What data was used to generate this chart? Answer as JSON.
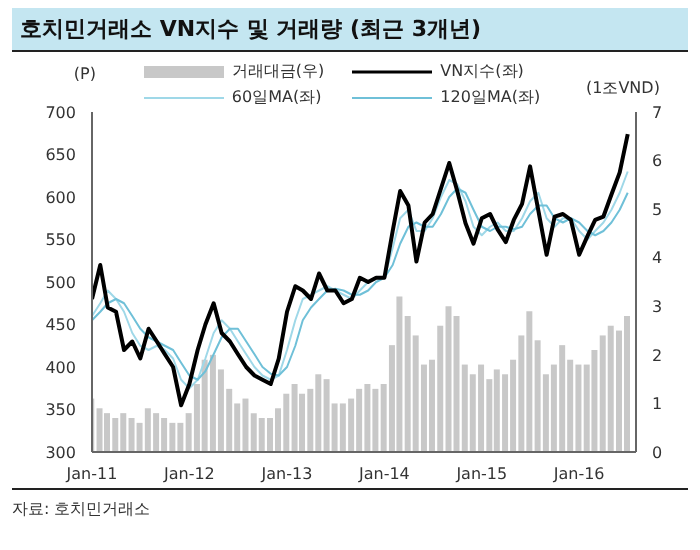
{
  "chart_data": {
    "type": "line",
    "title": "호치민거래소 VN지수 및 거래량 (최근 3개년)",
    "ylabel": "(P)",
    "y2label": "(1조VND)",
    "annotations": [
      "자료: 호치민거래소"
    ],
    "x": [
      "2011-01",
      "2011-02",
      "2011-03",
      "2011-04",
      "2011-05",
      "2011-06",
      "2011-07",
      "2011-08",
      "2011-09",
      "2011-10",
      "2011-11",
      "2011-12",
      "2012-01",
      "2012-02",
      "2012-03",
      "2012-04",
      "2012-05",
      "2012-06",
      "2012-07",
      "2012-08",
      "2012-09",
      "2012-10",
      "2012-11",
      "2012-12",
      "2013-01",
      "2013-02",
      "2013-03",
      "2013-04",
      "2013-05",
      "2013-06",
      "2013-07",
      "2013-08",
      "2013-09",
      "2013-10",
      "2013-11",
      "2013-12",
      "2014-01",
      "2014-02",
      "2014-03",
      "2014-04",
      "2014-05",
      "2014-06",
      "2014-07",
      "2014-08",
      "2014-09",
      "2014-10",
      "2014-11",
      "2014-12",
      "2015-01",
      "2015-02",
      "2015-03",
      "2015-04",
      "2015-05",
      "2015-06",
      "2015-07",
      "2015-08",
      "2015-09",
      "2015-10",
      "2015-11",
      "2015-12",
      "2016-01",
      "2016-02",
      "2016-03",
      "2016-04",
      "2016-05",
      "2016-06",
      "2016-07"
    ],
    "series": [
      {
        "name": "거래대금(우)",
        "type": "bar",
        "axis": "y2",
        "color": "#c8c8c8",
        "values": [
          1.1,
          0.9,
          0.8,
          0.7,
          0.8,
          0.7,
          0.6,
          0.9,
          0.8,
          0.7,
          0.6,
          0.6,
          0.8,
          1.4,
          1.9,
          2.0,
          1.7,
          1.3,
          1.0,
          1.1,
          0.8,
          0.7,
          0.7,
          0.9,
          1.2,
          1.4,
          1.2,
          1.3,
          1.6,
          1.5,
          1.0,
          1.0,
          1.1,
          1.3,
          1.4,
          1.3,
          1.4,
          2.2,
          3.2,
          2.8,
          2.4,
          1.8,
          1.9,
          2.6,
          3.0,
          2.8,
          1.8,
          1.6,
          1.8,
          1.5,
          1.7,
          1.6,
          1.9,
          2.4,
          2.9,
          2.3,
          1.6,
          1.8,
          2.2,
          1.9,
          1.8,
          1.8,
          2.1,
          2.4,
          2.6,
          2.5,
          2.8
        ]
      },
      {
        "name": "60일MA(좌)",
        "color": "#9fd8e8",
        "values": [
          460,
          475,
          490,
          480,
          465,
          440,
          425,
          420,
          425,
          420,
          410,
          385,
          375,
          385,
          410,
          440,
          455,
          445,
          430,
          415,
          400,
          390,
          385,
          390,
          420,
          455,
          480,
          485,
          490,
          495,
          490,
          485,
          480,
          490,
          500,
          505,
          505,
          540,
          575,
          585,
          560,
          560,
          575,
          600,
          620,
          615,
          595,
          565,
          555,
          565,
          570,
          560,
          560,
          575,
          595,
          605,
          575,
          565,
          575,
          575,
          560,
          550,
          560,
          570,
          585,
          605,
          630
        ]
      },
      {
        "name": "120일MA(좌)",
        "color": "#6fc0d8",
        "values": [
          455,
          465,
          475,
          480,
          475,
          460,
          445,
          435,
          430,
          425,
          420,
          405,
          390,
          385,
          395,
          415,
          435,
          445,
          445,
          430,
          415,
          400,
          392,
          390,
          400,
          425,
          455,
          470,
          480,
          490,
          492,
          490,
          485,
          485,
          490,
          500,
          505,
          520,
          545,
          565,
          570,
          565,
          565,
          580,
          600,
          610,
          605,
          585,
          565,
          560,
          565,
          565,
          562,
          565,
          580,
          590,
          590,
          575,
          570,
          575,
          570,
          560,
          555,
          560,
          570,
          585,
          605
        ]
      },
      {
        "name": "VN지수(좌)",
        "color": "#000000",
        "values": [
          480,
          520,
          470,
          465,
          420,
          430,
          410,
          445,
          430,
          415,
          400,
          355,
          380,
          420,
          450,
          475,
          440,
          430,
          415,
          400,
          390,
          385,
          380,
          410,
          465,
          495,
          490,
          480,
          510,
          490,
          490,
          475,
          480,
          505,
          500,
          505,
          505,
          560,
          607,
          590,
          524,
          570,
          580,
          610,
          640,
          607,
          569,
          545,
          575,
          580,
          562,
          547,
          573,
          592,
          636,
          584,
          532,
          577,
          580,
          573,
          532,
          554,
          573,
          577,
          603,
          629,
          674
        ]
      }
    ],
    "xlim": [
      "2011-01",
      "2016-08"
    ],
    "xticks": [
      {
        "value": "2011-01",
        "label": "Jan-11"
      },
      {
        "value": "2012-01",
        "label": "Jan-12"
      },
      {
        "value": "2013-01",
        "label": "Jan-13"
      },
      {
        "value": "2014-01",
        "label": "Jan-14"
      },
      {
        "value": "2015-01",
        "label": "Jan-15"
      },
      {
        "value": "2016-01",
        "label": "Jan-16"
      }
    ],
    "ylim": [
      300,
      700
    ],
    "yticks": [
      300,
      350,
      400,
      450,
      500,
      550,
      600,
      650,
      700
    ],
    "y2lim": [
      0,
      7
    ],
    "y2ticks": [
      0,
      1,
      2,
      3,
      4,
      5,
      6,
      7
    ],
    "legend": "top",
    "marker": "none",
    "line_style": "solid"
  }
}
